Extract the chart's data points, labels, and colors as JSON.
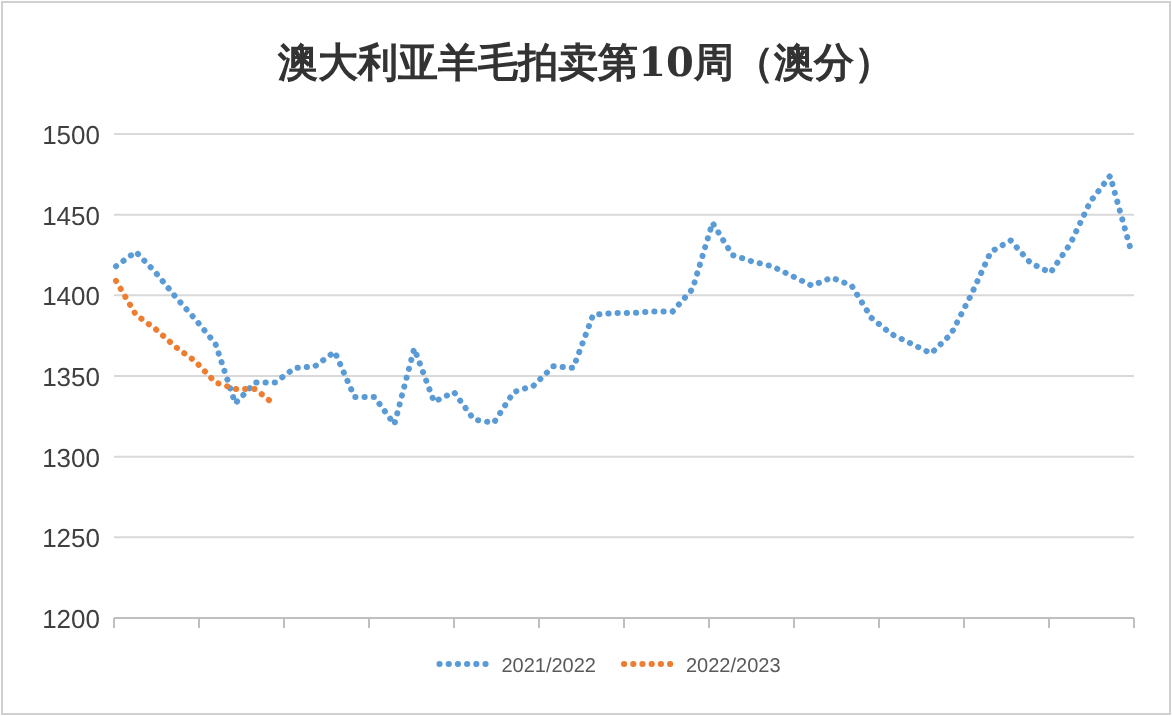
{
  "chart_data": {
    "type": "line",
    "title": "澳大利亚羊毛拍卖第10周（澳分）",
    "categories": [
      null,
      null,
      null,
      null,
      null,
      null,
      null,
      null,
      null,
      null,
      null,
      null,
      null,
      null,
      null,
      null,
      null,
      null,
      null,
      null,
      null,
      null,
      null,
      null,
      null,
      null,
      null,
      null,
      null,
      null,
      null,
      null,
      null,
      null,
      null,
      null,
      null,
      null,
      null,
      null,
      null,
      null,
      null,
      null,
      null,
      null,
      null,
      null,
      null,
      null,
      null,
      null
    ],
    "series": [
      {
        "name": "2021/2022",
        "color": "#5b9bd5",
        "values": [
          1418,
          1427,
          1414,
          1399,
          1385,
          1370,
          1333,
          1346,
          1346,
          1355,
          1356,
          1365,
          1337,
          1337,
          1320,
          1367,
          1334,
          1340,
          1323,
          1321,
          1340,
          1344,
          1356,
          1355,
          1388,
          1389,
          1389,
          1390,
          1390,
          1404,
          1445,
          1425,
          1421,
          1418,
          1412,
          1406,
          1411,
          1406,
          1386,
          1376,
          1370,
          1364,
          1376,
          1400,
          1427,
          1434,
          1420,
          1414,
          1432,
          1458,
          1474,
          1430
        ]
      },
      {
        "name": "2022/2023",
        "color": "#ed7d31",
        "values": [
          1409,
          1388,
          1379,
          1368,
          1359,
          1346,
          1342,
          1342,
          1332,
          null,
          null,
          null,
          null,
          null,
          null,
          null,
          null,
          null,
          null,
          null,
          null,
          null,
          null,
          null,
          null,
          null,
          null,
          null,
          null,
          null,
          null,
          null,
          null,
          null,
          null,
          null,
          null,
          null,
          null,
          null,
          null,
          null,
          null,
          null,
          null,
          null,
          null,
          null,
          null,
          null,
          null,
          null
        ]
      }
    ],
    "ylim": [
      1200,
      1500
    ],
    "yticks": [
      1200,
      1250,
      1300,
      1350,
      1400,
      1450,
      1500
    ],
    "grid": "y",
    "legend": "bottom",
    "line_style": "dotted",
    "marker": "none"
  }
}
